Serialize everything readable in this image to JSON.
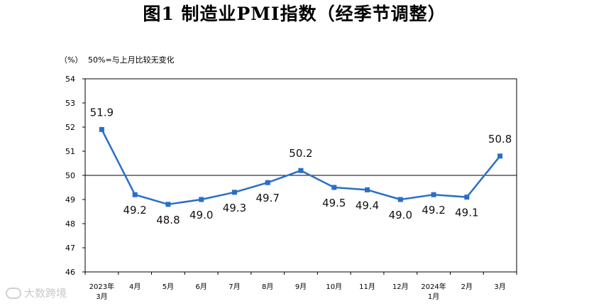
{
  "chart_data": {
    "type": "line",
    "title": "图1  制造业PMI指数（经季节调整）",
    "unit_label": "（%）",
    "note": "50%=与上月比较无变化",
    "categories": [
      [
        "2023年",
        "3月"
      ],
      [
        "4月"
      ],
      [
        "5月"
      ],
      [
        "6月"
      ],
      [
        "7月"
      ],
      [
        "8月"
      ],
      [
        "9月"
      ],
      [
        "10月"
      ],
      [
        "11月"
      ],
      [
        "12月"
      ],
      [
        "2024年",
        "1月"
      ],
      [
        "2月"
      ],
      [
        "3月"
      ]
    ],
    "values": [
      51.9,
      49.2,
      48.8,
      49.0,
      49.3,
      49.7,
      50.2,
      49.5,
      49.4,
      49.0,
      49.2,
      49.1,
      50.8
    ],
    "labels": [
      "51.9",
      "49.2",
      "48.8",
      "49.0",
      "49.3",
      "49.7",
      "50.2",
      "49.5",
      "49.4",
      "49.0",
      "49.2",
      "49.1",
      "50.8"
    ],
    "label_positions": [
      "above",
      "below",
      "below",
      "below",
      "below",
      "below",
      "above",
      "below",
      "below",
      "below",
      "below",
      "below",
      "above"
    ],
    "ylim": [
      46,
      54
    ],
    "yticks": [
      46,
      47,
      48,
      49,
      50,
      51,
      52,
      53,
      54
    ],
    "reference_line": 50,
    "line_color": "#2a6ec9",
    "xlabel": "",
    "ylabel": ""
  },
  "watermark": "大数跨境"
}
